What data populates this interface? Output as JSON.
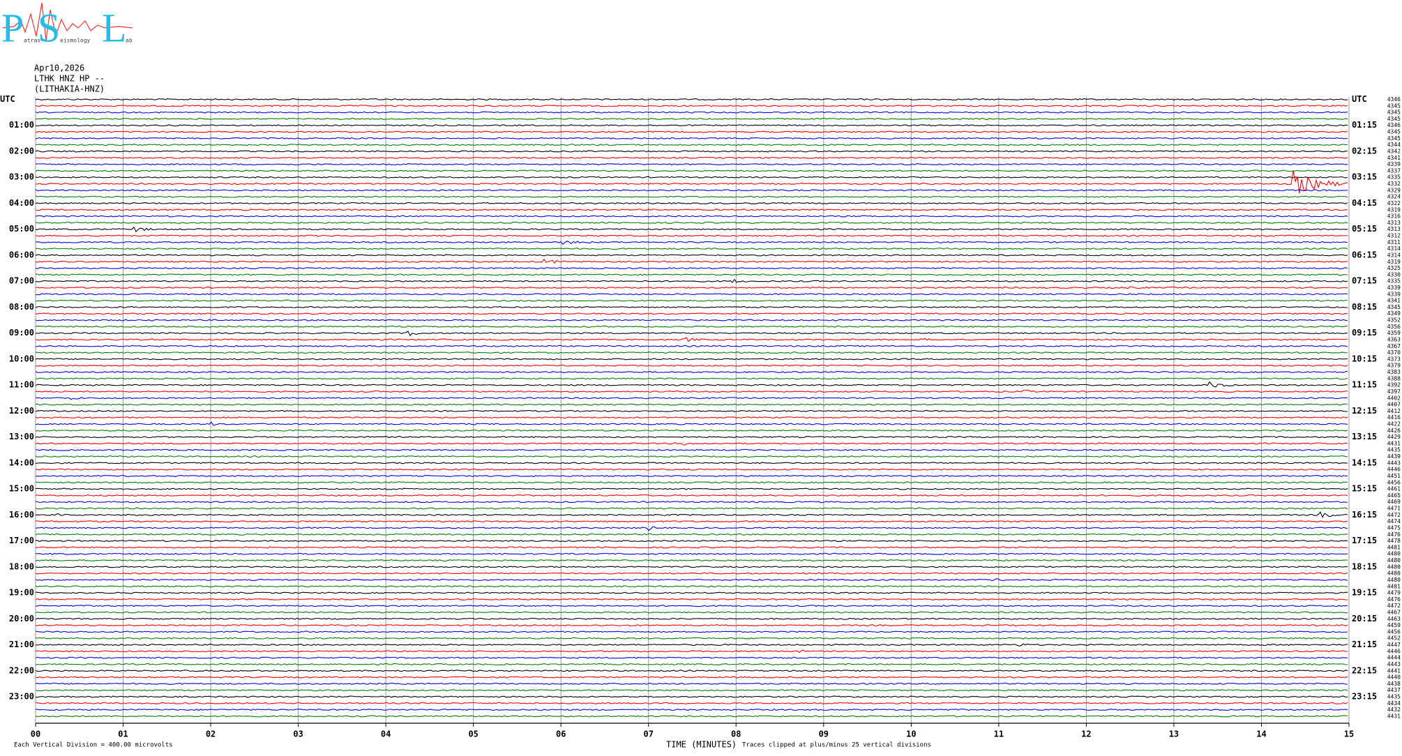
{
  "logo": {
    "letters": [
      "P",
      "S",
      "L"
    ],
    "words": [
      "atras",
      "eismology",
      "ab"
    ]
  },
  "header": {
    "date": "Apr10,2026",
    "station": "LTHK HNZ HP --",
    "site": "(LITHAKIA-HNZ)"
  },
  "left_labels": [
    "UTC",
    "01:00",
    "02:00",
    "03:00",
    "04:00",
    "05:00",
    "06:00",
    "07:00",
    "08:00",
    "09:00",
    "10:00",
    "11:00",
    "12:00",
    "13:00",
    "14:00",
    "15:00",
    "16:00",
    "17:00",
    "18:00",
    "19:00",
    "20:00",
    "21:00",
    "22:00",
    "23:00"
  ],
  "right_labels": [
    "UTC",
    "01:15",
    "02:15",
    "03:15",
    "04:15",
    "05:15",
    "06:15",
    "07:15",
    "08:15",
    "09:15",
    "10:15",
    "11:15",
    "12:15",
    "13:15",
    "14:15",
    "15:15",
    "16:15",
    "17:15",
    "18:15",
    "19:15",
    "20:15",
    "21:15",
    "22:15",
    "23:15"
  ],
  "trace_offsets": [
    "4346",
    "4345",
    "4345",
    "4345",
    "4346",
    "4345",
    "4345",
    "4344",
    "4342",
    "4341",
    "4339",
    "4337",
    "4335",
    "4332",
    "4329",
    "4324",
    "4322",
    "4319",
    "4316",
    "4313",
    "4313",
    "4312",
    "4311",
    "4314",
    "4314",
    "4319",
    "4325",
    "4330",
    "4335",
    "4339",
    "4339",
    "4341",
    "4345",
    "4349",
    "4352",
    "4356",
    "4359",
    "4363",
    "4367",
    "4370",
    "4373",
    "4379",
    "4383",
    "4388",
    "4392",
    "4397",
    "4402",
    "4407",
    "4412",
    "4416",
    "4422",
    "4426",
    "4429",
    "4431",
    "4435",
    "4439",
    "4443",
    "4446",
    "4451",
    "4456",
    "4461",
    "4465",
    "4469",
    "4471",
    "4472",
    "4474",
    "4475",
    "4476",
    "4478",
    "4481",
    "4480",
    "4480",
    "4480",
    "4480",
    "4480",
    "4481",
    "4479",
    "4476",
    "4472",
    "4467",
    "4463",
    "4459",
    "4456",
    "4452",
    "4447",
    "4446",
    "4444",
    "4443",
    "4441",
    "4440",
    "4438",
    "4437",
    "4435",
    "4434",
    "4432",
    "4431"
  ],
  "trace_colors": [
    "#000000",
    "#ff0000",
    "#0000ff",
    "#008000"
  ],
  "xlim": [
    0,
    15
  ],
  "xticks": [
    {
      "value": 0,
      "label": "00"
    },
    {
      "value": 1,
      "label": "01"
    },
    {
      "value": 2,
      "label": "02"
    },
    {
      "value": 3,
      "label": "03"
    },
    {
      "value": 4,
      "label": "04"
    },
    {
      "value": 5,
      "label": "05"
    },
    {
      "value": 6,
      "label": "06"
    },
    {
      "value": 7,
      "label": "07"
    },
    {
      "value": 8,
      "label": "08"
    },
    {
      "value": 9,
      "label": "09"
    },
    {
      "value": 10,
      "label": "10"
    },
    {
      "value": 11,
      "label": "11"
    },
    {
      "value": 12,
      "label": "12"
    },
    {
      "value": 13,
      "label": "13"
    },
    {
      "value": 14,
      "label": "14"
    },
    {
      "value": 15,
      "label": "15"
    }
  ],
  "xlabel": "TIME (MINUTES)",
  "footer": {
    "scale": "Each Vertical Division =  400.00 microvolts",
    "clip": "Traces clipped at plus/minus 25 vertical divisions"
  }
}
